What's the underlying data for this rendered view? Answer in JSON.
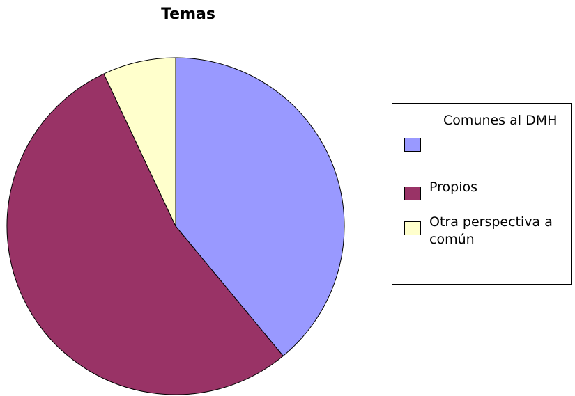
{
  "chart_data": {
    "type": "pie",
    "title": "Temas",
    "categories": [
      "Comunes al DMH",
      "Propios",
      "Otra perspectiva a común"
    ],
    "values": [
      39,
      54,
      7
    ],
    "colors": [
      "#9999ff",
      "#993366",
      "#ffffcc"
    ],
    "legend": "right"
  }
}
